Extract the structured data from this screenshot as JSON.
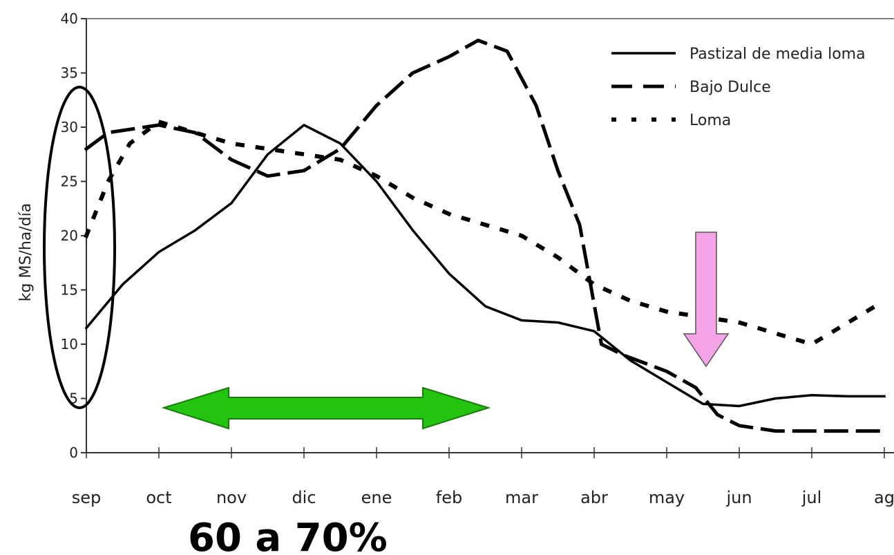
{
  "chart_data": {
    "type": "line",
    "ylabel": "kg MS/ha/día",
    "xlabel": "",
    "ylim": [
      0,
      40
    ],
    "yticks": [
      "0",
      "5",
      "10",
      "15",
      "20",
      "25",
      "30",
      "35",
      "40"
    ],
    "x": [
      "sep",
      "oct",
      "nov",
      "dic",
      "ene",
      "feb",
      "mar",
      "abr",
      "may",
      "jun",
      "jul",
      "ag"
    ],
    "legend_position": "top-right",
    "series": [
      {
        "name": "Pastizal de media loma",
        "style": "solid",
        "points": [
          [
            0,
            11.5
          ],
          [
            0.5,
            15.5
          ],
          [
            1,
            18.5
          ],
          [
            1.5,
            20.5
          ],
          [
            2,
            23
          ],
          [
            2.5,
            27.5
          ],
          [
            3,
            30.2
          ],
          [
            3.5,
            28.5
          ],
          [
            4,
            25
          ],
          [
            4.5,
            20.5
          ],
          [
            5,
            16.5
          ],
          [
            5.5,
            13.5
          ],
          [
            6,
            12.2
          ],
          [
            6.5,
            12
          ],
          [
            7,
            11.2
          ],
          [
            7.5,
            8.5
          ],
          [
            8,
            6.5
          ],
          [
            8.5,
            4.5
          ],
          [
            9,
            4.3
          ],
          [
            9.5,
            5
          ],
          [
            10,
            5.3
          ],
          [
            10.5,
            5.2
          ],
          [
            11,
            5.2
          ]
        ]
      },
      {
        "name": "Bajo Dulce",
        "style": "dashed",
        "points": [
          [
            0,
            28
          ],
          [
            0.3,
            29.5
          ],
          [
            1,
            30.2
          ],
          [
            1.5,
            29.5
          ],
          [
            2,
            27
          ],
          [
            2.5,
            25.5
          ],
          [
            3,
            26
          ],
          [
            3.5,
            28
          ],
          [
            4,
            32
          ],
          [
            4.5,
            35
          ],
          [
            5,
            36.5
          ],
          [
            5.4,
            38
          ],
          [
            5.8,
            37
          ],
          [
            6.2,
            32
          ],
          [
            6.5,
            26
          ],
          [
            6.8,
            21
          ],
          [
            7.1,
            10
          ],
          [
            7.4,
            9
          ],
          [
            7.8,
            8
          ],
          [
            8,
            7.5
          ],
          [
            8.4,
            6
          ],
          [
            8.7,
            3.5
          ],
          [
            9,
            2.5
          ],
          [
            9.5,
            2
          ],
          [
            10,
            2
          ],
          [
            10.5,
            2
          ],
          [
            11,
            2
          ]
        ]
      },
      {
        "name": "Loma",
        "style": "dotted",
        "points": [
          [
            0,
            20
          ],
          [
            0.3,
            25
          ],
          [
            0.6,
            28.5
          ],
          [
            1,
            30.5
          ],
          [
            1.5,
            29.5
          ],
          [
            2,
            28.5
          ],
          [
            2.5,
            28
          ],
          [
            3,
            27.5
          ],
          [
            3.5,
            27
          ],
          [
            4,
            25.5
          ],
          [
            4.5,
            23.5
          ],
          [
            5,
            22
          ],
          [
            5.5,
            21
          ],
          [
            6,
            20
          ],
          [
            6.5,
            18
          ],
          [
            7,
            15.5
          ],
          [
            7.5,
            14
          ],
          [
            8,
            13
          ],
          [
            8.5,
            12.5
          ],
          [
            9,
            12
          ],
          [
            9.5,
            11
          ],
          [
            10,
            10
          ],
          [
            10.5,
            12
          ],
          [
            11,
            14
          ]
        ]
      }
    ]
  },
  "annotations": {
    "caption": "60 a 70%",
    "arrow_color": "#22c40f",
    "down_arrow_color": "#f4a4e6",
    "ellipse_color": "#000000"
  }
}
